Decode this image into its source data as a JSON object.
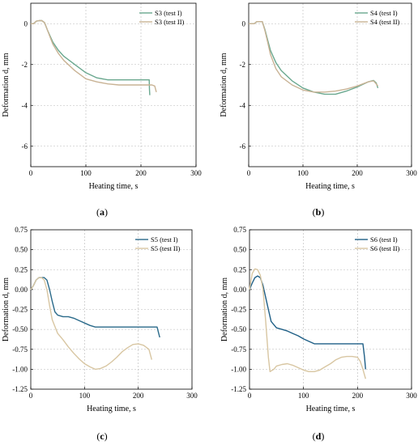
{
  "chart_data": [
    {
      "type": "line",
      "panel_label": "a",
      "xlabel": "Heating time, s",
      "ylabel": "Deformation d, mm",
      "xlim": [
        0,
        300
      ],
      "ylim": [
        -7,
        1
      ],
      "xticks": [
        0,
        100,
        200,
        300
      ],
      "yticks": [
        0,
        -2,
        -4,
        -6
      ],
      "grid": true,
      "legend": "top-right",
      "colors": [
        "#6aa88f",
        "#c9b395"
      ],
      "series": [
        {
          "name": "S3 (test I)",
          "x": [
            0,
            5,
            10,
            15,
            20,
            25,
            30,
            35,
            40,
            50,
            60,
            80,
            100,
            120,
            140,
            160,
            180,
            200,
            215,
            215.5,
            216
          ],
          "y": [
            0,
            0,
            0.12,
            0.15,
            0.15,
            0.05,
            -0.3,
            -0.6,
            -0.9,
            -1.3,
            -1.6,
            -2.0,
            -2.4,
            -2.65,
            -2.75,
            -2.75,
            -2.75,
            -2.75,
            -2.75,
            -3.2,
            -3.5
          ]
        },
        {
          "name": "S3 (test II)",
          "x": [
            0,
            5,
            10,
            15,
            20,
            25,
            30,
            35,
            40,
            50,
            60,
            80,
            100,
            120,
            140,
            160,
            180,
            200,
            220,
            225,
            228
          ],
          "y": [
            0,
            0,
            0.12,
            0.15,
            0.15,
            0.05,
            -0.3,
            -0.65,
            -1.0,
            -1.45,
            -1.8,
            -2.3,
            -2.7,
            -2.85,
            -2.95,
            -3.0,
            -3.0,
            -3.0,
            -3.0,
            -3.05,
            -3.35
          ]
        }
      ]
    },
    {
      "type": "line",
      "panel_label": "b",
      "xlabel": "Heating time, s",
      "ylabel": "Deformation d, mm",
      "xlim": [
        0,
        300
      ],
      "ylim": [
        -7,
        1
      ],
      "xticks": [
        0,
        100,
        200,
        300
      ],
      "yticks": [
        0,
        -2,
        -4,
        -6
      ],
      "grid": true,
      "legend": "top-right",
      "colors": [
        "#6aa88f",
        "#c9b395"
      ],
      "series": [
        {
          "name": "S4 (test I)",
          "x": [
            0,
            10,
            15,
            25,
            30,
            35,
            40,
            50,
            60,
            80,
            100,
            120,
            140,
            160,
            180,
            200,
            220,
            230,
            235,
            238
          ],
          "y": [
            0,
            0,
            0.1,
            0.1,
            -0.3,
            -0.8,
            -1.3,
            -1.9,
            -2.3,
            -2.8,
            -3.15,
            -3.35,
            -3.45,
            -3.45,
            -3.3,
            -3.1,
            -2.85,
            -2.78,
            -2.9,
            -3.15
          ]
        },
        {
          "name": "S4 (test II)",
          "x": [
            0,
            10,
            15,
            25,
            30,
            35,
            40,
            50,
            60,
            80,
            100,
            120,
            140,
            160,
            180,
            200,
            220,
            230,
            235,
            238
          ],
          "y": [
            0,
            0,
            0.1,
            0.1,
            -0.35,
            -0.9,
            -1.5,
            -2.2,
            -2.6,
            -3.0,
            -3.25,
            -3.35,
            -3.35,
            -3.3,
            -3.2,
            -3.05,
            -2.85,
            -2.8,
            -2.95,
            -3.05
          ]
        }
      ]
    },
    {
      "type": "line",
      "panel_label": "c",
      "xlabel": "Heating time, s",
      "ylabel": "Deformation d, mm",
      "xlim": [
        0,
        300
      ],
      "ylim": [
        -1.25,
        0.75
      ],
      "xticks": [
        0,
        100,
        200,
        300
      ],
      "yticks": [
        0.75,
        0.5,
        0.25,
        0,
        -0.25,
        -0.5,
        -0.75,
        -1.0,
        -1.25
      ],
      "ytick_labels": [
        "0.75",
        "0.50",
        "0.25",
        "0.00",
        "-0.25",
        "-0.50",
        "-0.75",
        "-1.00",
        "-1.25"
      ],
      "grid": true,
      "legend": "top-right",
      "colors": [
        "#2a6a8a",
        "#d8c6a2"
      ],
      "series": [
        {
          "name": "S5 (test I)",
          "x": [
            0,
            5,
            10,
            15,
            20,
            25,
            30,
            35,
            40,
            45,
            50,
            60,
            70,
            80,
            90,
            100,
            110,
            120,
            140,
            160,
            180,
            200,
            220,
            235,
            238,
            240
          ],
          "y": [
            0,
            0.05,
            0.12,
            0.15,
            0.15,
            0.15,
            0.12,
            0.0,
            -0.15,
            -0.28,
            -0.32,
            -0.34,
            -0.34,
            -0.36,
            -0.39,
            -0.42,
            -0.45,
            -0.47,
            -0.47,
            -0.47,
            -0.47,
            -0.47,
            -0.47,
            -0.47,
            -0.55,
            -0.6
          ]
        },
        {
          "name": "S5 (test II)",
          "x": [
            0,
            5,
            10,
            15,
            20,
            25,
            30,
            35,
            40,
            50,
            60,
            70,
            80,
            90,
            100,
            110,
            120,
            130,
            140,
            150,
            160,
            170,
            180,
            190,
            200,
            210,
            220,
            225
          ],
          "y": [
            0,
            0.05,
            0.12,
            0.15,
            0.15,
            0.12,
            0.0,
            -0.2,
            -0.38,
            -0.55,
            -0.63,
            -0.72,
            -0.8,
            -0.87,
            -0.93,
            -0.97,
            -1.0,
            -0.99,
            -0.96,
            -0.91,
            -0.85,
            -0.78,
            -0.73,
            -0.69,
            -0.68,
            -0.7,
            -0.75,
            -0.88
          ]
        }
      ]
    },
    {
      "type": "line",
      "panel_label": "d",
      "xlabel": "Heating time, s",
      "ylabel": "Deformation d, mm",
      "xlim": [
        0,
        300
      ],
      "ylim": [
        -1.25,
        0.75
      ],
      "xticks": [
        0,
        100,
        200,
        300
      ],
      "yticks": [
        0.75,
        0.5,
        0.25,
        0,
        -0.25,
        -0.5,
        -0.75,
        -1.0,
        -1.25
      ],
      "ytick_labels": [
        "0.75",
        "0.50",
        "0.25",
        "0.00",
        "-0.25",
        "-0.50",
        "-0.75",
        "-1.00",
        "-1.25"
      ],
      "grid": true,
      "legend": "top-right",
      "colors": [
        "#1f5f86",
        "#d8c6a2"
      ],
      "series": [
        {
          "name": "S6 (test I)",
          "x": [
            0,
            5,
            10,
            15,
            20,
            25,
            30,
            35,
            40,
            50,
            60,
            70,
            80,
            90,
            100,
            110,
            120,
            140,
            160,
            180,
            200,
            210,
            213,
            215
          ],
          "y": [
            0,
            0.08,
            0.15,
            0.17,
            0.15,
            0.05,
            -0.1,
            -0.25,
            -0.4,
            -0.48,
            -0.5,
            -0.52,
            -0.55,
            -0.58,
            -0.62,
            -0.65,
            -0.68,
            -0.68,
            -0.68,
            -0.68,
            -0.68,
            -0.68,
            -0.85,
            -1.0
          ]
        },
        {
          "name": "S6 (test II)",
          "x": [
            0,
            5,
            10,
            15,
            20,
            25,
            30,
            35,
            38,
            45,
            50,
            60,
            70,
            80,
            90,
            100,
            110,
            120,
            130,
            140,
            150,
            160,
            170,
            180,
            190,
            200,
            205,
            210,
            215
          ],
          "y": [
            0,
            0.2,
            0.26,
            0.25,
            0.18,
            0.0,
            -0.4,
            -0.85,
            -1.03,
            -1.0,
            -0.96,
            -0.94,
            -0.93,
            -0.95,
            -0.98,
            -1.01,
            -1.03,
            -1.03,
            -1.01,
            -0.97,
            -0.93,
            -0.88,
            -0.85,
            -0.84,
            -0.84,
            -0.85,
            -0.9,
            -1.0,
            -1.12
          ]
        }
      ]
    }
  ]
}
